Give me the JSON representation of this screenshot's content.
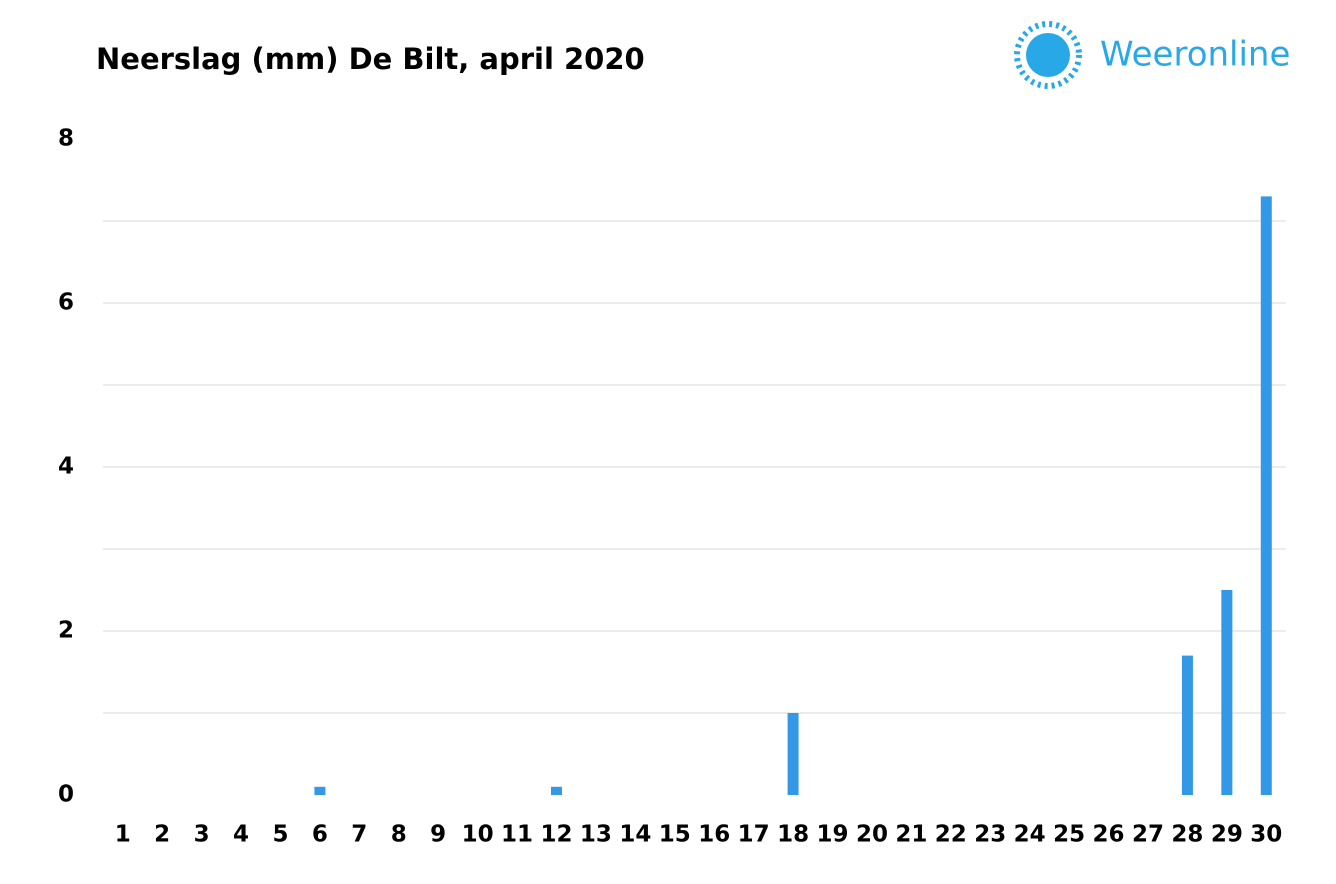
{
  "chart_data": {
    "type": "bar",
    "title": "Neerslag (mm) De Bilt, april 2020",
    "logo": "Weeronline",
    "categories": [
      "1",
      "2",
      "3",
      "4",
      "5",
      "6",
      "7",
      "8",
      "9",
      "10",
      "11",
      "12",
      "13",
      "14",
      "15",
      "16",
      "17",
      "18",
      "19",
      "20",
      "21",
      "22",
      "23",
      "24",
      "25",
      "26",
      "27",
      "28",
      "29",
      "30"
    ],
    "values": [
      0,
      0,
      0,
      0,
      0,
      0.1,
      0,
      0,
      0,
      0,
      0,
      0.1,
      0,
      0,
      0,
      0,
      0,
      1.0,
      0,
      0,
      0,
      0,
      0,
      0,
      0,
      0,
      0,
      1.7,
      2.5,
      7.3
    ],
    "color": "#3399e6",
    "ylim": [
      0,
      8
    ],
    "yticks": [
      0,
      2,
      4,
      6,
      8
    ],
    "gridlines": [
      1,
      2,
      3,
      4,
      5,
      6,
      7
    ],
    "grid": true
  }
}
